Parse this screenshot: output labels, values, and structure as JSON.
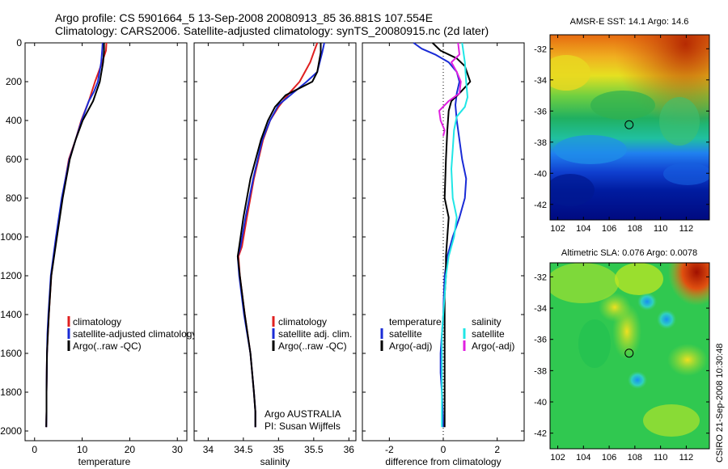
{
  "figure": {
    "title_line1": "Argo profile: CS 5901664_5 13-Sep-2008 20080913_85 36.881S 107.554E",
    "title_line2": "Climatology: CARS2006. Satellite-adjusted climatology: synTS_20080915.nc (2d later)",
    "credit": "CSIRO 21-Sep-2008 10:30:48"
  },
  "colors": {
    "red": "#e02020",
    "blue": "#1a2bd6",
    "black": "#000000",
    "cyan": "#20e6e6",
    "magenta": "#e020e0"
  },
  "chart_data": [
    {
      "type": "line",
      "xlabel": "temperature",
      "xlim": [
        -2,
        32
      ],
      "ylim": [
        0,
        2050
      ],
      "y_reversed": true,
      "xticks": [
        0,
        10,
        20,
        30
      ],
      "yticks": [
        0,
        200,
        400,
        600,
        800,
        1000,
        1200,
        1400,
        1600,
        1800,
        2000
      ],
      "legend": [
        "climatology",
        "satellite-adjusted climatology",
        "Argo(..raw -QC)"
      ],
      "legend_colors": [
        "#e02020",
        "#1a2bd6",
        "#000000"
      ],
      "series": [
        {
          "name": "climatology",
          "color": "#e02020",
          "x": [
            15.1,
            15.0,
            14.2,
            12.7,
            11.4,
            9.8,
            8.6,
            7.2,
            5.8,
            4.6,
            3.5,
            3.0,
            2.8,
            2.6,
            2.55,
            2.5,
            2.5,
            2.45
          ],
          "y": [
            0,
            40,
            100,
            200,
            300,
            400,
            500,
            600,
            800,
            1000,
            1200,
            1400,
            1500,
            1600,
            1700,
            1800,
            1900,
            1980
          ]
        },
        {
          "name": "satellite-adjusted climatology",
          "color": "#1a2bd6",
          "x": [
            14.3,
            14.2,
            14.0,
            13.3,
            12.5,
            11.4,
            9.9,
            8.6,
            7.3,
            5.7,
            4.5,
            3.4,
            2.9,
            2.7,
            2.6,
            2.55,
            2.5,
            2.5,
            2.45
          ],
          "y": [
            0,
            40,
            100,
            200,
            250,
            300,
            400,
            500,
            600,
            800,
            1000,
            1200,
            1400,
            1500,
            1600,
            1700,
            1800,
            1900,
            1980
          ]
        },
        {
          "name": "Argo(..raw -QC)",
          "color": "#000000",
          "x": [
            14.6,
            14.6,
            14.4,
            13.7,
            12.3,
            10.1,
            8.6,
            7.4,
            5.9,
            4.7,
            3.5,
            3.0,
            2.8,
            2.6,
            2.55,
            2.5,
            2.5,
            2.45
          ],
          "y": [
            0,
            40,
            100,
            200,
            300,
            400,
            500,
            600,
            800,
            1000,
            1200,
            1400,
            1500,
            1600,
            1700,
            1800,
            1900,
            1980
          ]
        }
      ]
    },
    {
      "type": "line",
      "xlabel": "salinity",
      "xlim": [
        33.8,
        36.1
      ],
      "ylim": [
        0,
        2050
      ],
      "y_reversed": true,
      "xticks": [
        34,
        34.5,
        35,
        35.5,
        36
      ],
      "legend": [
        "climatology",
        "satellite adj. clim.",
        "Argo(..raw -QC)"
      ],
      "legend_colors": [
        "#e02020",
        "#1a2bd6",
        "#000000"
      ],
      "annotation_line1": "Argo AUSTRALIA",
      "annotation_line2": "PI: Susan Wijffels",
      "series": [
        {
          "name": "climatology",
          "color": "#e02020",
          "x": [
            35.55,
            35.5,
            35.45,
            35.3,
            35.15,
            35.0,
            34.88,
            34.78,
            34.65,
            34.55,
            34.48,
            34.43,
            34.45,
            34.52,
            34.6,
            34.65,
            34.67,
            34.67
          ],
          "y": [
            0,
            50,
            100,
            200,
            260,
            330,
            400,
            500,
            700,
            900,
            1050,
            1100,
            1200,
            1400,
            1600,
            1800,
            1900,
            1980
          ]
        },
        {
          "name": "satellite adj. clim.",
          "color": "#1a2bd6",
          "x": [
            35.65,
            35.62,
            35.55,
            35.4,
            35.2,
            35.0,
            34.88,
            34.77,
            34.64,
            34.53,
            34.46,
            34.42,
            34.44,
            34.51,
            34.6,
            34.65,
            34.67,
            34.67
          ],
          "y": [
            0,
            50,
            150,
            200,
            260,
            320,
            400,
            500,
            700,
            900,
            1050,
            1100,
            1200,
            1400,
            1600,
            1800,
            1900,
            1980
          ]
        },
        {
          "name": "Argo(..raw -QC)",
          "color": "#000000",
          "x": [
            35.6,
            35.6,
            35.55,
            35.48,
            35.1,
            34.95,
            34.85,
            34.75,
            34.6,
            34.5,
            34.44,
            34.42,
            34.45,
            34.52,
            34.6,
            34.65,
            34.67,
            34.67
          ],
          "y": [
            0,
            50,
            150,
            200,
            270,
            330,
            400,
            500,
            700,
            900,
            1050,
            1100,
            1200,
            1400,
            1600,
            1800,
            1900,
            1980
          ]
        }
      ]
    },
    {
      "type": "line",
      "xlabel": "difference from climatology",
      "xlim": [
        -3,
        3
      ],
      "ylim": [
        0,
        2050
      ],
      "y_reversed": true,
      "xticks": [
        -2,
        0,
        2
      ],
      "zero_line": true,
      "legend_header_left": "temperature",
      "legend_header_right": "salinity",
      "legend_left": [
        "satellite",
        "Argo(-adj)"
      ],
      "legend_left_colors": [
        "#1a2bd6",
        "#000000"
      ],
      "legend_right": [
        "satellite",
        "Argo(-adj)"
      ],
      "legend_right_colors": [
        "#20e6e6",
        "#e020e0"
      ],
      "series": [
        {
          "name": "temperature satellite",
          "color": "#1a2bd6",
          "x": [
            -1.1,
            -0.8,
            -0.3,
            0.2,
            0.5,
            0.6,
            0.5,
            0.45,
            0.5,
            0.6,
            0.7,
            0.85,
            0.8,
            0.6,
            0.35,
            0.15,
            0.05,
            0.02,
            0.0,
            -0.05,
            -0.1,
            -0.1,
            -0.05,
            0.0
          ],
          "y": [
            0,
            30,
            60,
            100,
            150,
            200,
            260,
            320,
            400,
            500,
            600,
            700,
            800,
            900,
            1000,
            1100,
            1200,
            1300,
            1400,
            1500,
            1600,
            1700,
            1800,
            1980
          ]
        },
        {
          "name": "temperature Argo(-adj)",
          "color": "#000000",
          "x": [
            -0.4,
            -0.1,
            0.5,
            0.8,
            1.0,
            0.6,
            0.3,
            0.2,
            0.15,
            0.1,
            0.05,
            0.2,
            0.15,
            0.1,
            0.1,
            0.05,
            0.05,
            0.05,
            0.05,
            0.05,
            0.05,
            0.05,
            0.05
          ],
          "y": [
            0,
            40,
            80,
            120,
            200,
            260,
            300,
            350,
            450,
            600,
            800,
            900,
            1000,
            1100,
            1200,
            1300,
            1400,
            1500,
            1600,
            1700,
            1800,
            1900,
            1980
          ]
        },
        {
          "name": "salinity satellite",
          "color": "#20e6e6",
          "x": [
            0.7,
            0.75,
            0.8,
            0.85,
            0.9,
            0.8,
            0.5,
            0.4,
            0.35,
            0.3,
            0.35,
            0.5,
            0.4,
            0.2,
            0.1,
            0.05,
            0.0,
            -0.05,
            -0.05,
            -0.05,
            -0.05
          ],
          "y": [
            0,
            50,
            100,
            200,
            280,
            330,
            380,
            450,
            550,
            650,
            800,
            900,
            1000,
            1100,
            1200,
            1300,
            1400,
            1500,
            1600,
            1800,
            1980
          ]
        },
        {
          "name": "salinity Argo(-adj)",
          "color": "#e020e0",
          "x": [
            0.55,
            0.6,
            0.3,
            0.5,
            0.65,
            0.6,
            0.2,
            -0.15,
            -0.1,
            0.05,
            0.0
          ],
          "y": [
            0,
            60,
            100,
            150,
            200,
            260,
            300,
            350,
            400,
            450,
            480
          ]
        }
      ]
    },
    {
      "type": "heatmap",
      "title": "AMSR-E SST: 14.1 Argo: 14.6",
      "xlim": [
        101.4,
        113.8
      ],
      "ylim": [
        -43,
        -31.1
      ],
      "xticks": [
        102,
        104,
        106,
        108,
        110,
        112
      ],
      "yticks": [
        -32,
        -34,
        -36,
        -38,
        -40,
        -42
      ],
      "marker": {
        "lon": 107.554,
        "lat": -36.881
      }
    },
    {
      "type": "heatmap",
      "title": "Altimetric SLA: 0.076 Argo: 0.0078",
      "xlim": [
        101.4,
        113.8
      ],
      "ylim": [
        -43,
        -31.1
      ],
      "xticks": [
        102,
        104,
        106,
        108,
        110,
        112
      ],
      "yticks": [
        -32,
        -34,
        -36,
        -38,
        -40,
        -42
      ],
      "marker": {
        "lon": 107.554,
        "lat": -36.881
      }
    }
  ]
}
